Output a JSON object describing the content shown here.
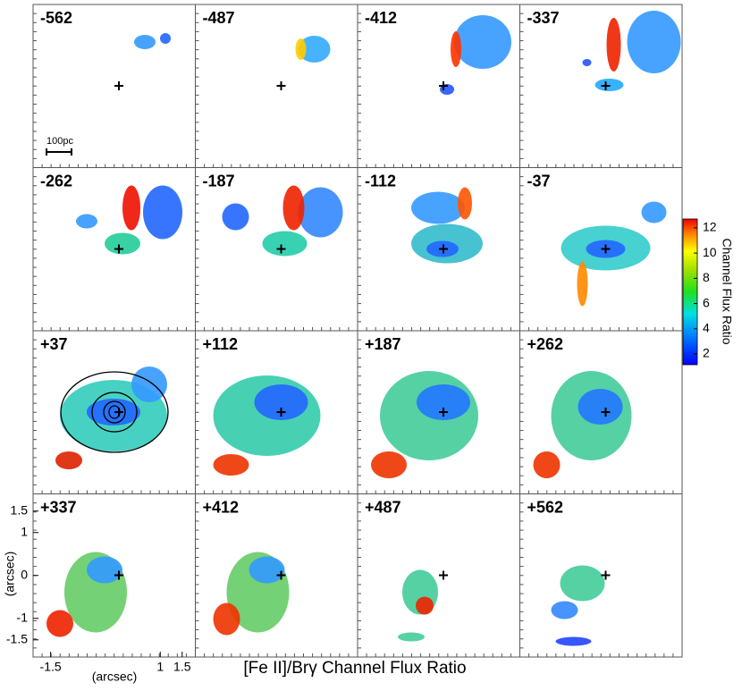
{
  "title": "[Fe II]/Brγ Channel Flux Ratio",
  "panels": [
    "-562",
    "-487",
    "-412",
    "-337",
    "-262",
    "-187",
    "-112",
    "-37",
    "+37",
    "+112",
    "+187",
    "+262",
    "+337",
    "+412",
    "+487",
    "+562"
  ],
  "scale_bar": "100pc",
  "axes": {
    "xlabel": "(arcsec)",
    "ylabel": "(arcsec)",
    "xlim": [
      -1.9,
      1.8
    ],
    "ylim": [
      -1.9,
      1.9
    ],
    "xticks": [
      -1.5,
      1,
      1.5
    ],
    "yticks": [
      -1.5,
      -1,
      0,
      1,
      1.5
    ]
  },
  "colorbar": {
    "title": "Channel Flux Ratio",
    "lim": [
      1.15,
      12.7
    ],
    "ticks": [
      2,
      4,
      6,
      8,
      10,
      12
    ]
  }
}
